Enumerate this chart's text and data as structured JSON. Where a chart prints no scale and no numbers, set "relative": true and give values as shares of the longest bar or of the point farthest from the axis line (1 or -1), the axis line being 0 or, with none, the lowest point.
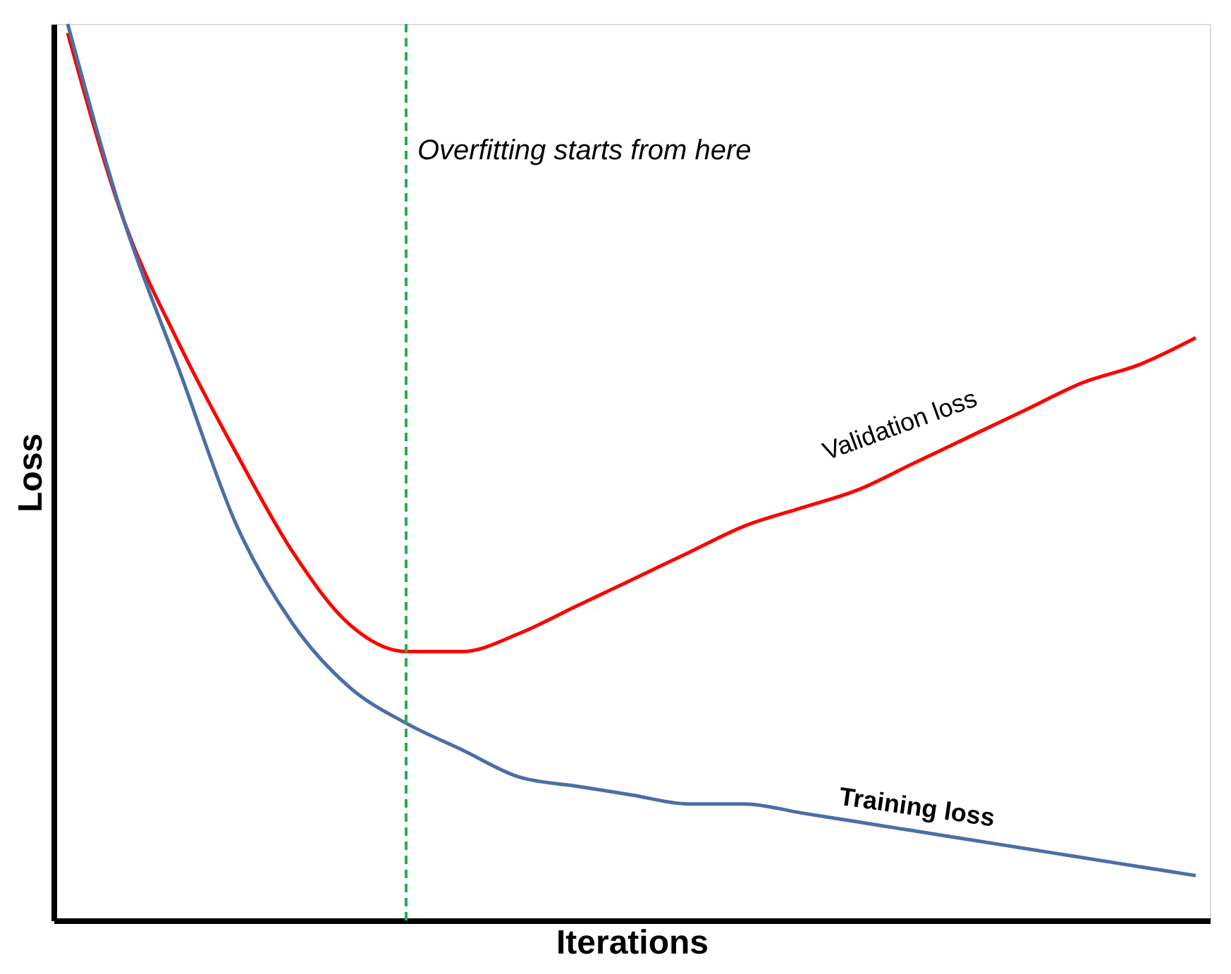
{
  "chart_data": {
    "type": "line",
    "xlabel": "Iterations",
    "ylabel": "Loss",
    "relative": true,
    "grid": false,
    "tick_labels": false,
    "categories": [
      null,
      null,
      null,
      null,
      null,
      null,
      null,
      null,
      null,
      null,
      null,
      null,
      null,
      null,
      null,
      null,
      null,
      null,
      null,
      null,
      null
    ],
    "series": [
      {
        "name": "Validation loss",
        "color": "#ff0000",
        "values": [
          0.99,
          0.78,
          0.64,
          0.52,
          0.41,
          0.33,
          0.3,
          0.3,
          0.32,
          0.35,
          0.38,
          0.41,
          0.44,
          0.46,
          0.48,
          0.51,
          0.54,
          0.57,
          0.6,
          0.62,
          0.65
        ]
      },
      {
        "name": "Training loss",
        "color": "#4a6fa5",
        "values": [
          1.0,
          0.78,
          0.61,
          0.44,
          0.33,
          0.26,
          0.22,
          0.19,
          0.16,
          0.15,
          0.14,
          0.13,
          0.13,
          0.12,
          0.11,
          0.1,
          0.09,
          0.08,
          0.07,
          0.06,
          0.05
        ]
      }
    ],
    "annotations": [
      "Overfitting starts from here"
    ]
  }
}
